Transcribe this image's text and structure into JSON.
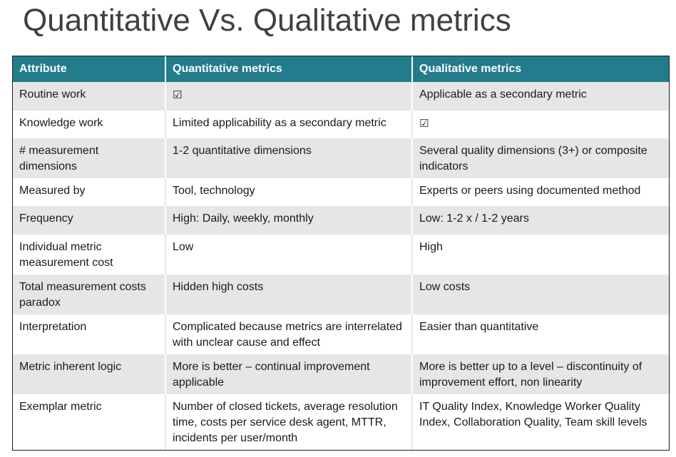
{
  "title": "Quantitative Vs. Qualitative metrics",
  "table": {
    "headers": [
      "Attribute",
      "Quantitative metrics",
      "Qualitative metrics"
    ],
    "rows": [
      [
        "Routine work",
        "☑",
        "Applicable as a secondary metric"
      ],
      [
        "Knowledge work",
        "Limited applicability as a secondary metric",
        "☑"
      ],
      [
        "# measurement dimensions",
        "1-2 quantitative dimensions",
        "Several quality dimensions (3+) or composite indicators"
      ],
      [
        "Measured by",
        "Tool, technology",
        "Experts or peers using documented method"
      ],
      [
        "Frequency",
        "High: Daily, weekly, monthly",
        "Low: 1-2 x / 1-2 years"
      ],
      [
        "Individual metric measurement cost",
        "Low",
        "High"
      ],
      [
        "Total measurement costs paradox",
        "Hidden high costs",
        "Low costs"
      ],
      [
        "Interpretation",
        "Complicated because metrics are interrelated with unclear cause and effect",
        "Easier than quantitative"
      ],
      [
        "Metric inherent logic",
        "More is better – continual improvement applicable",
        "More is better up to a level – discontinuity of improvement effort, non linearity"
      ],
      [
        "Exemplar metric",
        "Number of closed tickets, average resolution time, costs per service desk agent, MTTR, incidents per user/month",
        "IT Quality Index, Knowledge Worker Quality Index, Collaboration Quality, Team skill levels"
      ]
    ]
  }
}
